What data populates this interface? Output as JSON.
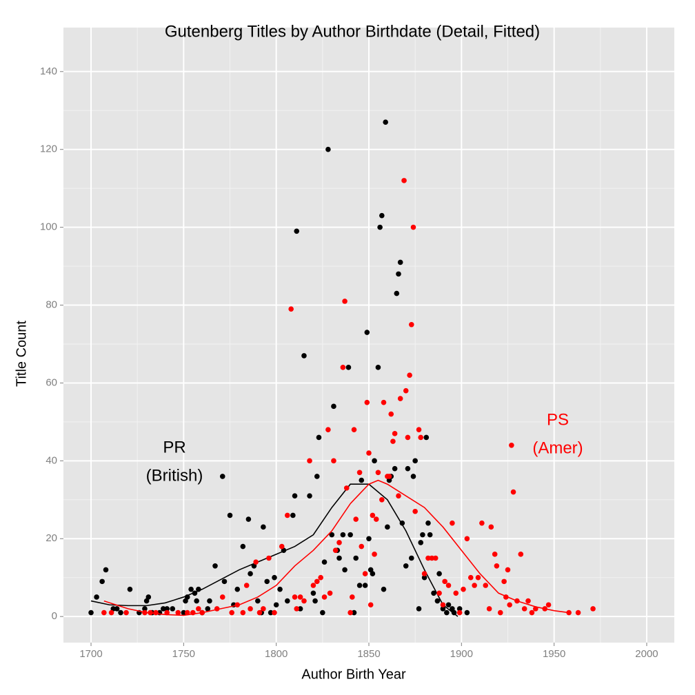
{
  "chart_data": {
    "type": "scatter",
    "title": "Gutenberg Titles by Author Birthdate (Detail, Fitted)",
    "x_label": "Author Birth Year",
    "y_label": "Title Count",
    "xlim": [
      1685.1,
      2014.9
    ],
    "ylim": [
      -6.7,
      151.3
    ],
    "xticks": [
      1700,
      1750,
      1800,
      1850,
      1900,
      1950,
      2000
    ],
    "yticks": [
      0,
      20,
      40,
      60,
      80,
      100,
      120,
      140
    ],
    "xminor": [
      1725,
      1775,
      1825,
      1875,
      1925,
      1975
    ],
    "yminor": [
      10,
      30,
      50,
      70,
      90,
      110,
      130
    ],
    "grid": true,
    "series": [
      {
        "color": "#000000",
        "x": [
          1700,
          1703,
          1706,
          1708,
          1712,
          1714,
          1716,
          1721,
          1726,
          1729,
          1730,
          1731,
          1733,
          1737,
          1739,
          1741,
          1744,
          1750,
          1751,
          1752,
          1754,
          1756,
          1757,
          1758,
          1760,
          1763,
          1764,
          1767,
          1771,
          1772,
          1775,
          1777,
          1779,
          1782,
          1785,
          1786,
          1788,
          1790,
          1792,
          1793,
          1795,
          1797,
          1799,
          1800,
          1802,
          1804,
          1806,
          1809,
          1810,
          1811,
          1813,
          1815,
          1818,
          1820,
          1821,
          1822,
          1823,
          1825,
          1826,
          1828,
          1830,
          1831,
          1833,
          1834,
          1836,
          1837,
          1839,
          1840,
          1842,
          1843,
          1845,
          1846,
          1848,
          1849,
          1850,
          1851,
          1852,
          1853,
          1855,
          1856,
          1857,
          1858,
          1859,
          1860,
          1861,
          1862,
          1864,
          1865,
          1866,
          1867,
          1868,
          1870,
          1871,
          1873,
          1874,
          1875,
          1877,
          1878,
          1879,
          1880,
          1881,
          1882,
          1883,
          1885,
          1887,
          1888,
          1890,
          1892,
          1893,
          1895,
          1896,
          1899,
          1903
        ],
        "values": [
          1,
          5,
          9,
          12,
          2,
          2,
          1,
          7,
          1,
          2,
          4,
          5,
          1,
          1,
          2,
          2,
          2,
          1,
          4,
          5,
          7,
          6,
          4,
          7,
          1,
          2,
          4,
          13,
          36,
          9,
          26,
          3,
          7,
          18,
          25,
          11,
          13,
          4,
          1,
          23,
          9,
          1,
          10,
          3,
          7,
          17,
          4,
          26,
          31,
          99,
          2,
          67,
          31,
          6,
          4,
          36,
          46,
          1,
          14,
          120,
          21,
          54,
          17,
          15,
          21,
          12,
          64,
          21,
          1,
          15,
          8,
          35,
          8,
          73,
          20,
          12,
          11,
          40,
          64,
          100,
          103,
          7,
          127,
          23,
          35,
          36,
          38,
          83,
          88,
          91,
          24,
          13,
          38,
          15,
          36,
          40,
          2,
          19,
          21,
          10,
          46,
          24,
          21,
          6,
          4,
          11,
          2,
          1,
          3,
          2,
          1,
          2,
          1
        ],
        "fit": {
          "x": [
            1700,
            1710,
            1720,
            1730,
            1740,
            1750,
            1760,
            1770,
            1780,
            1790,
            1800,
            1810,
            1820,
            1830,
            1840,
            1850,
            1860,
            1870,
            1880,
            1890,
            1898
          ],
          "values": [
            4,
            3,
            2.8,
            2.8,
            3.5,
            5,
            7,
            9.5,
            12,
            14,
            16,
            18,
            21,
            28,
            34,
            34,
            30,
            22,
            12,
            3,
            0
          ]
        }
      },
      {
        "color": "#ff0000",
        "x": [
          1707,
          1711,
          1719,
          1729,
          1732,
          1735,
          1741,
          1747,
          1752,
          1755,
          1758,
          1760,
          1768,
          1771,
          1776,
          1779,
          1782,
          1784,
          1786,
          1789,
          1791,
          1793,
          1796,
          1799,
          1803,
          1806,
          1808,
          1810,
          1811,
          1813,
          1815,
          1818,
          1820,
          1822,
          1824,
          1826,
          1828,
          1829,
          1831,
          1832,
          1834,
          1836,
          1837,
          1838,
          1840,
          1841,
          1842,
          1843,
          1845,
          1846,
          1848,
          1849,
          1850,
          1851,
          1852,
          1853,
          1854,
          1855,
          1857,
          1858,
          1860,
          1861,
          1862,
          1863,
          1864,
          1866,
          1867,
          1869,
          1870,
          1871,
          1872,
          1873,
          1874,
          1875,
          1877,
          1878,
          1880,
          1882,
          1884,
          1886,
          1888,
          1890,
          1891,
          1893,
          1895,
          1897,
          1899,
          1901,
          1903,
          1905,
          1907,
          1909,
          1911,
          1913,
          1915,
          1916,
          1918,
          1919,
          1921,
          1923,
          1924,
          1925,
          1926,
          1927,
          1928,
          1930,
          1932,
          1934,
          1936,
          1938,
          1940,
          1945,
          1947,
          1958,
          1963,
          1971
        ],
        "values": [
          1,
          1,
          1,
          1,
          1,
          1,
          1,
          1,
          1,
          1,
          2,
          1,
          2,
          5,
          1,
          3,
          1,
          8,
          2,
          14,
          1,
          2,
          15,
          1,
          18,
          26,
          79,
          5,
          2,
          5,
          4,
          40,
          8,
          9,
          10,
          5,
          48,
          6,
          40,
          17,
          19,
          64,
          81,
          33,
          1,
          5,
          48,
          25,
          37,
          18,
          11,
          55,
          42,
          3,
          26,
          16,
          25,
          37,
          30,
          55,
          36,
          36,
          52,
          45,
          47,
          31,
          56,
          112,
          58,
          46,
          62,
          75,
          100,
          27,
          48,
          46,
          11,
          15,
          15,
          15,
          6,
          3,
          9,
          8,
          24,
          6,
          1,
          7,
          20,
          10,
          8,
          10,
          24,
          8,
          2,
          23,
          16,
          13,
          1,
          9,
          5,
          12,
          3,
          44,
          32,
          4,
          16,
          2,
          4,
          1,
          2,
          2,
          3,
          1,
          1,
          2
        ],
        "fit": {
          "x": [
            1707,
            1720,
            1730,
            1740,
            1750,
            1760,
            1770,
            1780,
            1790,
            1800,
            1810,
            1820,
            1830,
            1840,
            1850,
            1855,
            1860,
            1870,
            1880,
            1890,
            1900,
            1910,
            1920,
            1930,
            1940,
            1950,
            1958
          ],
          "values": [
            4,
            2,
            1,
            0.5,
            0.3,
            1,
            2,
            3,
            5,
            8,
            13,
            17,
            22,
            29,
            34,
            35,
            34,
            31,
            28,
            23,
            17,
            11,
            6,
            4,
            2.5,
            1.5,
            1
          ]
        }
      }
    ],
    "annotations": [
      "PR",
      "(British)",
      "PS",
      "(Amer)"
    ]
  }
}
